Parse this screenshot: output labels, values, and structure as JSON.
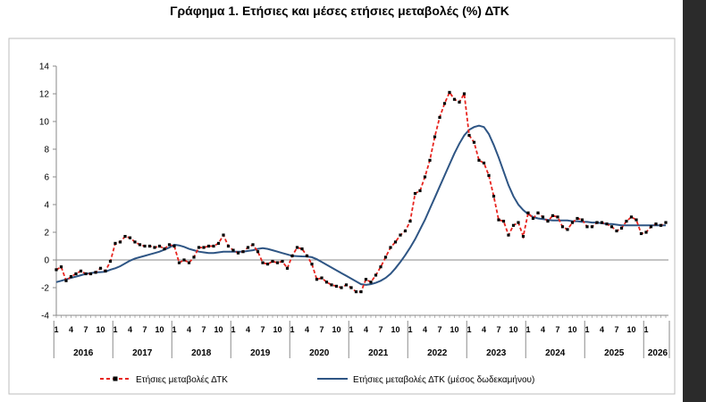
{
  "title": "Γράφημα 1. Ετήσιες και μέσες ετήσιες μεταβολές (%) ΔΤΚ",
  "colors": {
    "annual": "#e8231e",
    "average": "#2e5584",
    "marker": "#000000",
    "axis": "#8a8a8a"
  },
  "chart_data": {
    "type": "line",
    "title": "Γράφημα 1. Ετήσιες και μέσες ετήσιες μεταβολές (%) ΔΤΚ",
    "ylim": [
      -4,
      14
    ],
    "yticks": [
      "-4",
      "-2",
      "0",
      "2",
      "4",
      "6",
      "8",
      "10",
      "12",
      "14"
    ],
    "grid": false,
    "legend_position": "bottom",
    "month_labels": [
      "1",
      "4",
      "7",
      "10",
      "1",
      "4",
      "7",
      "10",
      "1",
      "4",
      "7",
      "10",
      "1",
      "4",
      "7",
      "10",
      "1",
      "4",
      "7",
      "10",
      "1",
      "4",
      "7",
      "10",
      "1",
      "4",
      "7",
      "10",
      "1",
      "4",
      "7",
      "10",
      "1",
      "4",
      "7",
      "10",
      "1",
      "4",
      "7",
      "10",
      "1"
    ],
    "years": [
      "2016",
      "2017",
      "2018",
      "2019",
      "2020",
      "2021",
      "2022",
      "2023",
      "2024",
      "2025",
      "2026"
    ],
    "series": [
      {
        "name": "Ετήσιες μεταβολές ΔΤΚ",
        "style": "dashed-with-markers",
        "values": [
          -0.7,
          -0.5,
          -1.5,
          -1.2,
          -1.0,
          -0.8,
          -1.0,
          -1.0,
          -0.9,
          -0.6,
          -0.8,
          -0.1,
          1.2,
          1.3,
          1.7,
          1.6,
          1.3,
          1.1,
          1.0,
          1.0,
          0.9,
          1.0,
          0.8,
          1.1,
          1.0,
          -0.2,
          0.0,
          -0.2,
          0.2,
          0.9,
          0.9,
          1.0,
          1.0,
          1.2,
          1.8,
          1.0,
          0.7,
          0.5,
          0.6,
          0.9,
          1.1,
          0.6,
          -0.2,
          -0.3,
          -0.1,
          -0.2,
          -0.1,
          -0.6,
          0.3,
          0.9,
          0.8,
          0.3,
          -0.3,
          -1.4,
          -1.3,
          -1.6,
          -1.8,
          -1.9,
          -2.0,
          -1.8,
          -2.0,
          -2.3,
          -2.3,
          -1.4,
          -1.6,
          -1.1,
          -0.5,
          0.2,
          0.9,
          1.3,
          1.8,
          2.1,
          2.8,
          4.8,
          5.0,
          6.0,
          7.2,
          8.9,
          10.3,
          11.3,
          12.1,
          11.6,
          11.4,
          12.0,
          9.0,
          8.5,
          7.2,
          7.0,
          6.1,
          4.6,
          2.9,
          2.8,
          1.8,
          2.5,
          2.7,
          1.7,
          3.4,
          3.0,
          3.4,
          3.1,
          2.8,
          3.2,
          3.1,
          2.4,
          2.2,
          2.7,
          3.0,
          2.9,
          2.4,
          2.4,
          2.7,
          2.7,
          2.6,
          2.4,
          2.1,
          2.3,
          2.8,
          3.1,
          2.9,
          1.9,
          2.0,
          2.4,
          2.6,
          2.5,
          2.7
        ]
      },
      {
        "name": "Ετήσιες μεταβολές ΔΤΚ (μέσος δωδεκαμήνου)",
        "style": "solid",
        "values": [
          -1.6,
          -1.5,
          -1.4,
          -1.3,
          -1.2,
          -1.1,
          -1.0,
          -0.95,
          -0.9,
          -0.88,
          -0.85,
          -0.7,
          -0.6,
          -0.45,
          -0.25,
          -0.05,
          0.1,
          0.2,
          0.3,
          0.4,
          0.5,
          0.6,
          0.75,
          0.9,
          1.1,
          1.05,
          0.95,
          0.8,
          0.7,
          0.6,
          0.55,
          0.5,
          0.5,
          0.55,
          0.6,
          0.6,
          0.6,
          0.6,
          0.6,
          0.65,
          0.7,
          0.8,
          0.85,
          0.8,
          0.7,
          0.6,
          0.5,
          0.4,
          0.3,
          0.28,
          0.26,
          0.25,
          0.2,
          0.05,
          -0.15,
          -0.35,
          -0.55,
          -0.75,
          -0.95,
          -1.15,
          -1.35,
          -1.55,
          -1.75,
          -1.8,
          -1.75,
          -1.65,
          -1.5,
          -1.3,
          -1.0,
          -0.6,
          -0.15,
          0.35,
          0.9,
          1.5,
          2.2,
          2.9,
          3.7,
          4.5,
          5.3,
          6.1,
          6.9,
          7.7,
          8.4,
          9.0,
          9.4,
          9.6,
          9.7,
          9.6,
          9.1,
          8.3,
          7.4,
          6.4,
          5.4,
          4.6,
          4.0,
          3.6,
          3.3,
          3.1,
          3.0,
          2.95,
          2.9,
          2.85,
          2.85,
          2.85,
          2.85,
          2.8,
          2.8,
          2.75,
          2.75,
          2.7,
          2.7,
          2.65,
          2.6,
          2.6,
          2.55,
          2.5,
          2.5,
          2.5,
          2.5,
          2.5,
          2.5,
          2.5,
          2.5,
          2.5,
          2.5
        ]
      }
    ]
  },
  "legend": {
    "annual": "Ετήσιες μεταβολές ΔΤΚ",
    "average": "Ετήσιες μεταβολές ΔΤΚ (μέσος δωδεκαμήνου)"
  }
}
